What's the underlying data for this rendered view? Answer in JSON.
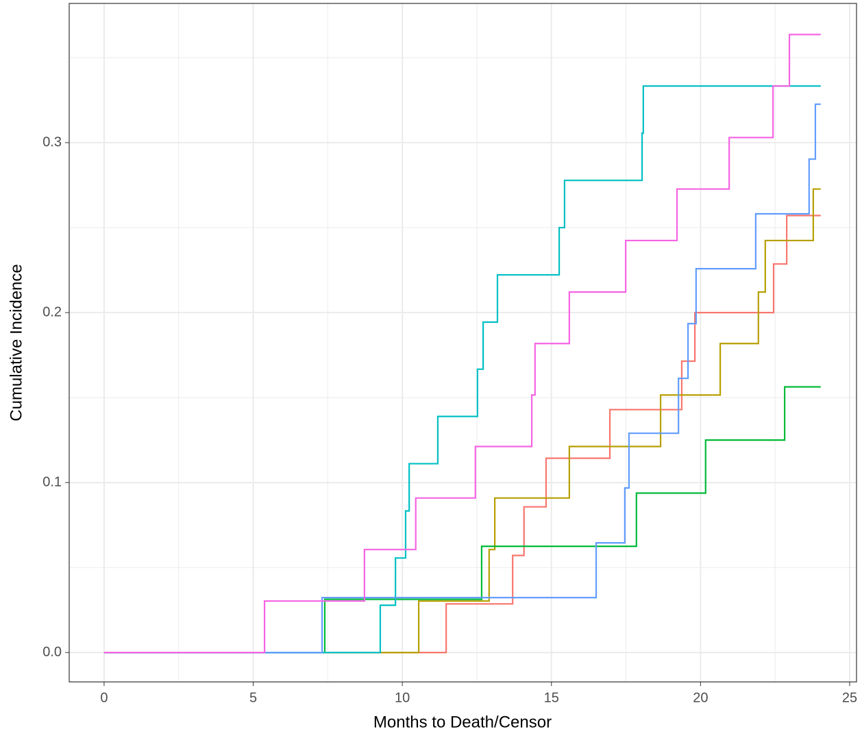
{
  "chart_data": {
    "type": "step",
    "x_label": "Months to Death/Censor",
    "y_label": "Cumulative Incidence",
    "xlim": [
      -1.17,
      25.23
    ],
    "ylim": [
      -0.0173,
      0.3819
    ],
    "xticks": [
      0,
      5,
      10,
      15,
      20,
      25
    ],
    "yticks": [
      {
        "value": 0,
        "label": "0.0"
      },
      0.1,
      0.2,
      0.3
    ],
    "grid": true,
    "series": [
      {
        "color": "#F8766D",
        "x": [
          0,
          11.47,
          13.7,
          14.08,
          14.82,
          16.96,
          19.37,
          19.81,
          22.45,
          22.89,
          24.03
        ],
        "values": [
          0,
          0.0286,
          0.0571,
          0.0857,
          0.1143,
          0.1429,
          0.1714,
          0.2,
          0.2286,
          0.2571,
          0.2571
        ]
      },
      {
        "color": "#B79F00",
        "x": [
          0,
          10.55,
          12.91,
          13.1,
          15.6,
          18.66,
          20.66,
          21.94,
          22.17,
          23.78,
          24.03
        ],
        "values": [
          0,
          0.0303,
          0.0606,
          0.0909,
          0.1212,
          0.1515,
          0.1818,
          0.2121,
          0.2424,
          0.2727,
          0.2727
        ]
      },
      {
        "color": "#00BA38",
        "x": [
          0,
          7.4,
          12.66,
          17.85,
          20.17,
          22.82,
          24.03
        ],
        "values": [
          0,
          0.0313,
          0.0625,
          0.0938,
          0.125,
          0.1563,
          0.1563
        ]
      },
      {
        "color": "#00BFC4",
        "x": [
          0,
          9.26,
          9.77,
          10.11,
          10.23,
          11.19,
          12.52,
          12.71,
          13.19,
          15.26,
          15.44,
          18.04,
          18.08,
          24.03
        ],
        "values": [
          0,
          0.0278,
          0.0556,
          0.0833,
          0.1111,
          0.1389,
          0.1667,
          0.1944,
          0.2222,
          0.25,
          0.2778,
          0.3056,
          0.3333,
          0.3333
        ]
      },
      {
        "color": "#619CFF",
        "x": [
          0,
          7.31,
          16.5,
          17.46,
          17.6,
          19.26,
          19.58,
          19.85,
          21.85,
          23.64,
          23.85,
          24.03
        ],
        "values": [
          0,
          0.0323,
          0.0645,
          0.0968,
          0.129,
          0.1613,
          0.1935,
          0.2258,
          0.2581,
          0.2903,
          0.3226,
          0.3226
        ]
      },
      {
        "color": "#F564E3",
        "x": [
          0,
          5.38,
          8.73,
          10.45,
          12.45,
          14.34,
          14.45,
          15.6,
          17.49,
          19.21,
          20.96,
          22.43,
          22.98,
          24.03
        ],
        "values": [
          0,
          0.0303,
          0.0606,
          0.0909,
          0.1212,
          0.1515,
          0.1818,
          0.2121,
          0.2424,
          0.2727,
          0.303,
          0.3333,
          0.3636,
          0.3636
        ]
      }
    ]
  }
}
